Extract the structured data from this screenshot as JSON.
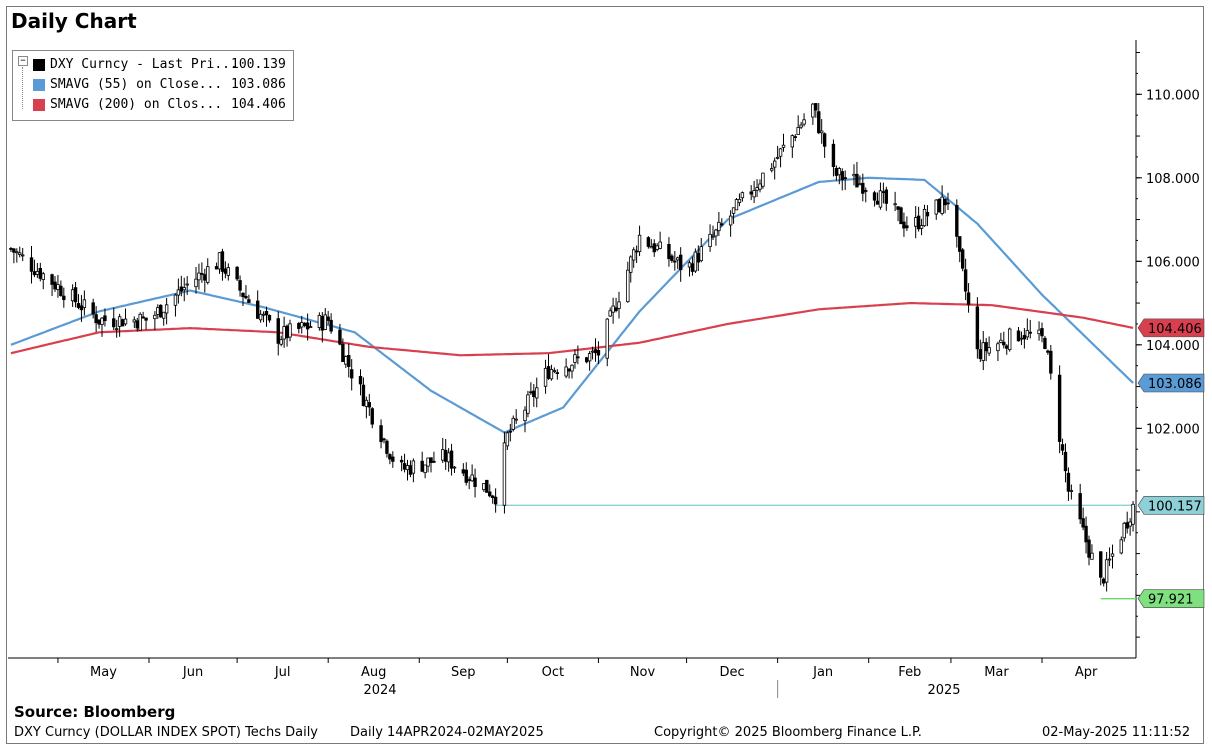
{
  "title": "Daily Chart",
  "legend": [
    {
      "name": "DXY Curncy - Last Pri...",
      "value": "100.139",
      "color": "#000000"
    },
    {
      "name": "SMAVG (55)  on Close...",
      "value": "103.086",
      "color": "#5b9bd5"
    },
    {
      "name": "SMAVG (200)  on Clos...",
      "value": "104.406",
      "color": "#d9404f"
    }
  ],
  "source": "Source: Bloomberg",
  "footer": {
    "security": "DXY Curncy (DOLLAR INDEX SPOT) Techs Daily",
    "range": "Daily 14APR2024-02MAY2025",
    "copyright": "Copyright© 2025 Bloomberg Finance L.P.",
    "timestamp": "02-May-2025 11:11:52"
  },
  "chart_data": {
    "type": "candlestick",
    "title": "Daily Chart",
    "y_ticks": [
      "110.000",
      "108.000",
      "106.000",
      "104.000",
      "102.000"
    ],
    "ylim": [
      96.5,
      111.3
    ],
    "x_month_labels": [
      "May",
      "Jun",
      "Jul",
      "Aug",
      "Sep",
      "Oct",
      "Nov",
      "Dec",
      "Jan",
      "Feb",
      "Mar",
      "Apr"
    ],
    "x_year_labels": [
      "2024",
      "2025"
    ],
    "grid": false,
    "legend_position": "top-left",
    "series": [
      {
        "name": "DXY Curncy - Last Pri...",
        "kind": "price",
        "color": "#000000",
        "x": [
          "2024-04-15",
          "2024-05-01",
          "2024-05-15",
          "2024-06-01",
          "2024-06-15",
          "2024-06-25",
          "2024-07-01",
          "2024-07-15",
          "2024-08-01",
          "2024-08-10",
          "2024-08-25",
          "2024-09-10",
          "2024-09-27",
          "2024-10-01",
          "2024-10-15",
          "2024-11-01",
          "2024-11-15",
          "2024-12-01",
          "2024-12-15",
          "2025-01-01",
          "2025-01-13",
          "2025-01-20",
          "2025-02-01",
          "2025-02-15",
          "2025-02-28",
          "2025-03-10",
          "2025-03-25",
          "2025-04-02",
          "2025-04-10",
          "2025-04-21",
          "2025-05-02"
        ],
        "y": [
          106.3,
          105.4,
          104.6,
          104.6,
          105.5,
          106.0,
          105.4,
          104.2,
          104.6,
          103.2,
          101.0,
          101.3,
          100.4,
          101.8,
          103.4,
          103.8,
          106.6,
          105.8,
          107.0,
          108.5,
          109.7,
          108.1,
          107.8,
          106.8,
          107.5,
          103.8,
          104.3,
          104.1,
          100.5,
          98.3,
          100.139
        ]
      },
      {
        "name": "SMAVG (55)  on Close...",
        "color": "#5b9bd5",
        "x": [
          "2024-04-15",
          "2024-05-15",
          "2024-06-15",
          "2024-07-10",
          "2024-08-10",
          "2024-09-05",
          "2024-09-30",
          "2024-10-20",
          "2024-11-15",
          "2024-12-15",
          "2025-01-15",
          "2025-02-01",
          "2025-02-20",
          "2025-03-10",
          "2025-04-01",
          "2025-05-02"
        ],
        "y": [
          104.0,
          104.8,
          105.3,
          104.9,
          104.3,
          102.9,
          101.9,
          102.5,
          104.8,
          107.0,
          107.9,
          108.0,
          107.95,
          106.9,
          105.2,
          103.086
        ]
      },
      {
        "name": "SMAVG (200)  on Clos...",
        "color": "#d9404f",
        "x": [
          "2024-04-15",
          "2024-05-15",
          "2024-06-15",
          "2024-07-15",
          "2024-08-15",
          "2024-09-15",
          "2024-10-15",
          "2024-11-15",
          "2024-12-15",
          "2025-01-15",
          "2025-02-15",
          "2025-03-15",
          "2025-04-15",
          "2025-05-02"
        ],
        "y": [
          103.8,
          104.3,
          104.4,
          104.3,
          103.95,
          103.75,
          103.8,
          104.05,
          104.5,
          104.85,
          105.0,
          104.95,
          104.65,
          104.406
        ]
      }
    ],
    "price_lines": [
      {
        "label": "100.157",
        "value": 100.157,
        "color": "#8ed0d8",
        "from_date": "2024-09-27"
      },
      {
        "label": "97.921",
        "value": 97.921,
        "color": "#6bd66b",
        "from_date": "2025-04-21"
      }
    ],
    "value_tags": [
      {
        "label": "104.406",
        "value": 104.406,
        "color": "#d9404f",
        "text_color": "#000000"
      },
      {
        "label": "103.086",
        "value": 103.086,
        "color": "#5b9bd5",
        "text_color": "#000000"
      },
      {
        "label": "100.157",
        "value": 100.157,
        "color": "#8ed0d8",
        "text_color": "#000000"
      },
      {
        "label": "97.921",
        "value": 97.921,
        "color": "#7ee07e",
        "text_color": "#000000"
      }
    ]
  }
}
